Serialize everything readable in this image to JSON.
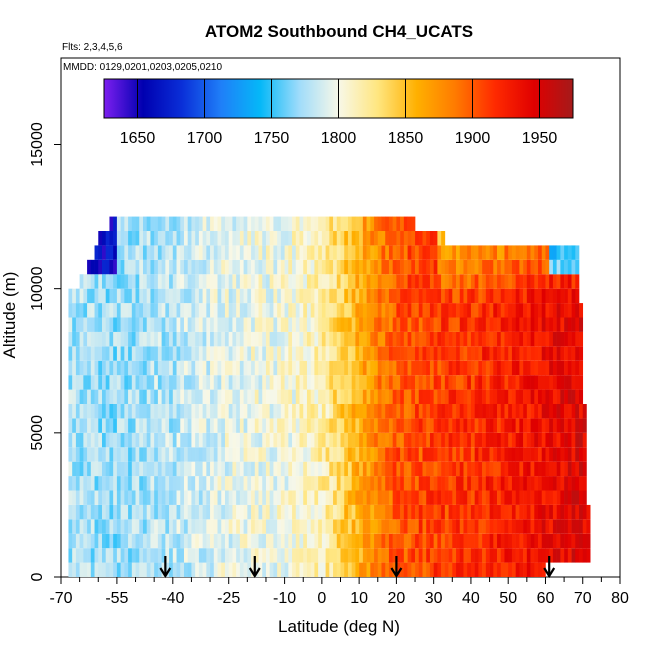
{
  "chart_data": {
    "type": "heatmap",
    "title": "ATOM2 Southbound CH4_UCATS",
    "subtitle_flights": "Flts: 2,3,4,5,6",
    "subtitle_dates": "MMDD: 0129,0201,0203,0205,0210",
    "xlabel": "Latitude (deg N)",
    "ylabel": "Altitude (m)",
    "xlim": [
      -70,
      80
    ],
    "ylim": [
      0,
      18000
    ],
    "x_ticks": [
      -70,
      -55,
      -40,
      -25,
      -10,
      0,
      10,
      20,
      30,
      40,
      50,
      60,
      70,
      80
    ],
    "x_tick_labels": [
      "-70",
      "-55",
      "-40",
      "-25",
      "-10",
      "0",
      "10",
      "20",
      "30",
      "40",
      "50",
      "60",
      "70",
      "80"
    ],
    "y_ticks": [
      0,
      5000,
      10000,
      15000
    ],
    "y_tick_labels": [
      "0",
      "5000",
      "10000",
      "15000"
    ],
    "colorbar": {
      "range": [
        1625,
        1975
      ],
      "ticks": [
        1650,
        1700,
        1750,
        1800,
        1850,
        1900,
        1950
      ],
      "tick_labels": [
        "1650",
        "1700",
        "1750",
        "1800",
        "1850",
        "1900",
        "1950"
      ],
      "colors": [
        "#7d1ff0",
        "#0000b0",
        "#0a2fd8",
        "#1f7ff8",
        "#05b8f8",
        "#a0dcfa",
        "#f8f8e8",
        "#ffe680",
        "#ffb000",
        "#ff7a00",
        "#ff2a00",
        "#e00000",
        "#a51a1a"
      ]
    },
    "flight_markers_latitude": [
      -42,
      -18,
      20,
      61
    ],
    "altitude_bins_m": [
      250,
      750,
      1250,
      1750,
      2250,
      2750,
      3250,
      3750,
      4250,
      4750,
      5250,
      5750,
      6250,
      6750,
      7250,
      7750,
      8250,
      8750,
      9250,
      9750,
      10250,
      10750,
      11250,
      11750,
      12250
    ],
    "latitude_coverage_by_bin": [
      [
        -68,
        60
      ],
      [
        -68,
        72
      ],
      [
        -68,
        72
      ],
      [
        -68,
        72
      ],
      [
        -68,
        72
      ],
      [
        -68,
        71
      ],
      [
        -68,
        71
      ],
      [
        -68,
        71
      ],
      [
        -68,
        71
      ],
      [
        -68,
        71
      ],
      [
        -68,
        71
      ],
      [
        -68,
        71
      ],
      [
        -68,
        70
      ],
      [
        -68,
        70
      ],
      [
        -68,
        70
      ],
      [
        -68,
        70
      ],
      [
        -68,
        70
      ],
      [
        -68,
        70
      ],
      [
        -68,
        70
      ],
      [
        -68,
        69
      ],
      [
        -65,
        69
      ],
      [
        -63,
        69
      ],
      [
        -61,
        69
      ],
      [
        -60,
        33
      ],
      [
        -57,
        25
      ]
    ],
    "profile_ch4_ppb_vs_latitude": {
      "latitude": [
        -68,
        -55,
        -40,
        -25,
        -10,
        0,
        10,
        15,
        20,
        30,
        40,
        50,
        60,
        70
      ],
      "ch4_ppb": [
        1775,
        1770,
        1780,
        1795,
        1800,
        1815,
        1860,
        1880,
        1900,
        1910,
        1915,
        1925,
        1935,
        1945
      ]
    }
  }
}
